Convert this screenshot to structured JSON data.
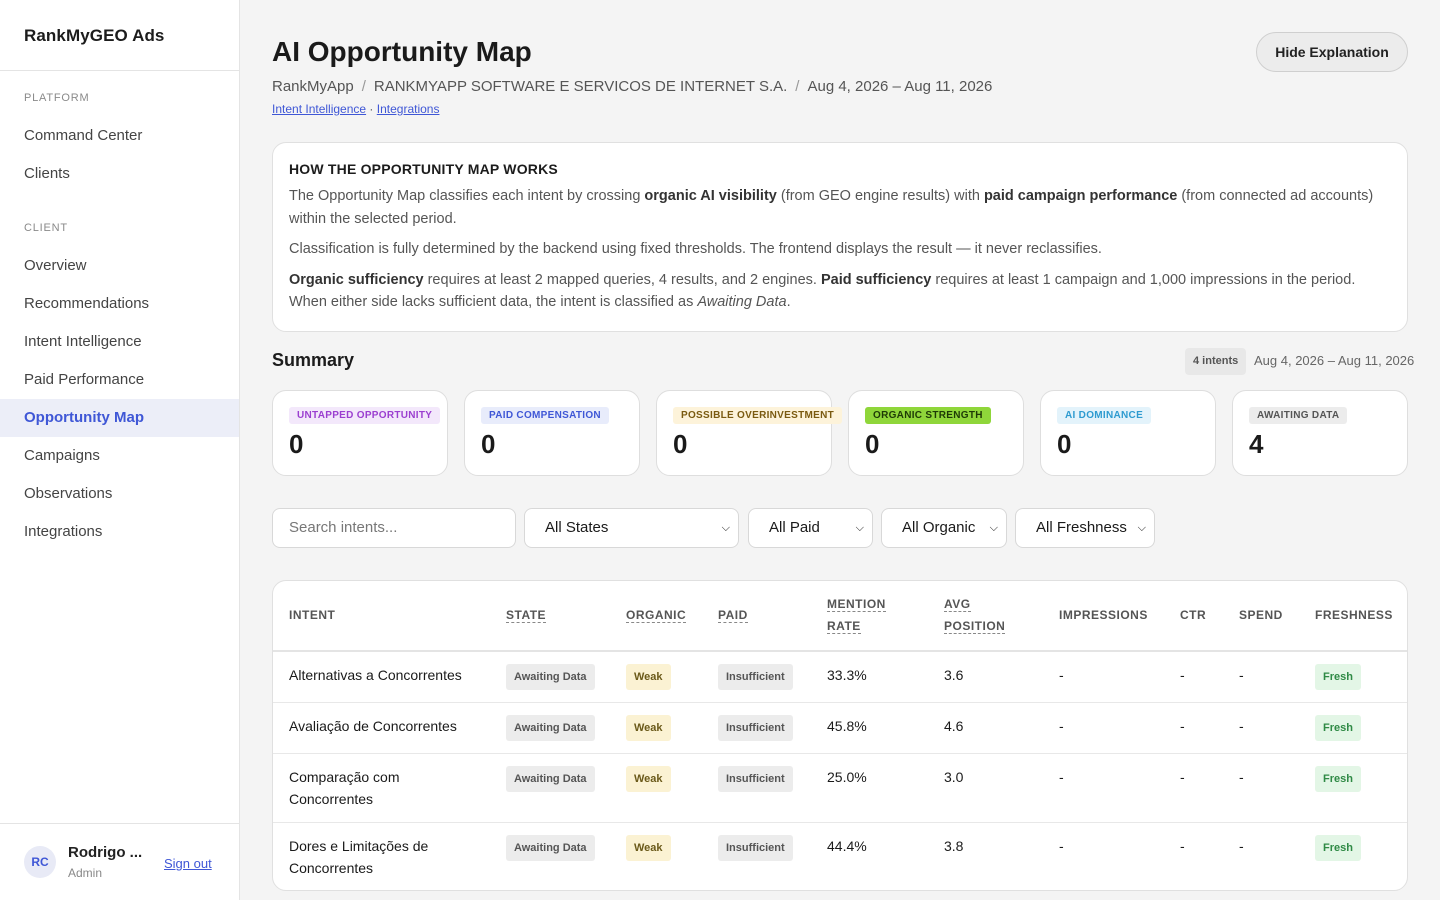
{
  "app": {
    "brand": "RankMyGEO Ads"
  },
  "sidebar": {
    "sections": [
      "PLATFORM",
      "CLIENT"
    ],
    "platform_items": [
      {
        "label": "Command Center"
      },
      {
        "label": "Clients"
      }
    ],
    "client_items": [
      {
        "label": "Overview"
      },
      {
        "label": "Recommendations"
      },
      {
        "label": "Intent Intelligence"
      },
      {
        "label": "Paid Performance"
      },
      {
        "label": "Opportunity Map",
        "active": true
      },
      {
        "label": "Campaigns"
      },
      {
        "label": "Observations"
      },
      {
        "label": "Integrations"
      }
    ],
    "user": {
      "initials": "RC",
      "name": "Rodrigo ...",
      "role": "Admin",
      "signout": "Sign out"
    }
  },
  "header": {
    "title": "AI Opportunity Map",
    "hide_button": "Hide Explanation",
    "breadcrumb": [
      "RankMyApp",
      "RANKMYAPP SOFTWARE E SERVICOS DE INTERNET S.A.",
      "Aug 4, 2026 – Aug 11, 2026"
    ],
    "links": [
      "Intent Intelligence",
      "Integrations"
    ],
    "link_separator": "·"
  },
  "explanation": {
    "heading": "HOW THE OPPORTUNITY MAP WORKS",
    "p1_a": "The Opportunity Map classifies each intent by crossing ",
    "p1_b": "organic AI visibility",
    "p1_c": " (from GEO engine results) with ",
    "p1_d": "paid campaign performance",
    "p1_e": " (from connected ad accounts) within the selected period.",
    "p2": "Classification is fully determined by the backend using fixed thresholds. The frontend displays the result — it never reclassifies.",
    "p3_a": "Organic sufficiency",
    "p3_b": " requires at least 2 mapped queries, 4 results, and 2 engines. ",
    "p3_c": "Paid sufficiency",
    "p3_d": " requires at least 1 campaign and 1,000 impressions in the period. When either side lacks sufficient data, the intent is classified as ",
    "p3_e": "Awaiting Data",
    "p3_f": "."
  },
  "summary": {
    "title": "Summary",
    "count_badge": "4 intents",
    "range": "Aug 4, 2026 – Aug 11, 2026",
    "cards": [
      {
        "label": "UNTAPPED OPPORTUNITY",
        "value": "0",
        "bg": "#f3e8fb",
        "fg": "#9b3fd0"
      },
      {
        "label": "PAID COMPENSATION",
        "value": "0",
        "bg": "#e8ecfb",
        "fg": "#3f57d6"
      },
      {
        "label": "POSSIBLE OVERINVESTMENT",
        "value": "0",
        "bg": "#fdf3da",
        "fg": "#7a5a10"
      },
      {
        "label": "ORGANIC STRENGTH",
        "value": "0",
        "bg": "#8fd63a",
        "fg": "#1e3a06"
      },
      {
        "label": "AI DOMINANCE",
        "value": "0",
        "bg": "#e3f3fb",
        "fg": "#2e9bd0"
      },
      {
        "label": "AWAITING DATA",
        "value": "4",
        "bg": "#ececec",
        "fg": "#555555"
      }
    ]
  },
  "filters": {
    "search_placeholder": "Search intents...",
    "state": "All States",
    "paid": "All Paid",
    "organic": "All Organic",
    "freshness": "All Freshness"
  },
  "table": {
    "columns": [
      "INTENT",
      "STATE",
      "ORGANIC",
      "PAID",
      "MENTION",
      "RATE",
      "AVG",
      "POSITION",
      "IMPRESSIONS",
      "CTR",
      "SPEND",
      "FRESHNESS"
    ],
    "rows": [
      {
        "intent_1": "Alternativas a Concorrentes",
        "intent_2": "",
        "state": "Awaiting Data",
        "organic": "Weak",
        "paid": "Insufficient",
        "mention": "33.3%",
        "avg": "3.6",
        "impressions": "-",
        "ctr": "-",
        "spend": "-",
        "freshness": "Fresh"
      },
      {
        "intent_1": "Avaliação de Concorrentes",
        "intent_2": "",
        "state": "Awaiting Data",
        "organic": "Weak",
        "paid": "Insufficient",
        "mention": "45.8%",
        "avg": "4.6",
        "impressions": "-",
        "ctr": "-",
        "spend": "-",
        "freshness": "Fresh"
      },
      {
        "intent_1": "Comparação com",
        "intent_2": "Concorrentes",
        "state": "Awaiting Data",
        "organic": "Weak",
        "paid": "Insufficient",
        "mention": "25.0%",
        "avg": "3.0",
        "impressions": "-",
        "ctr": "-",
        "spend": "-",
        "freshness": "Fresh"
      },
      {
        "intent_1": "Dores e Limitações de",
        "intent_2": "Concorrentes",
        "state": "Awaiting Data",
        "organic": "Weak",
        "paid": "Insufficient",
        "mention": "44.4%",
        "avg": "3.8",
        "impressions": "-",
        "ctr": "-",
        "spend": "-",
        "freshness": "Fresh"
      }
    ]
  }
}
